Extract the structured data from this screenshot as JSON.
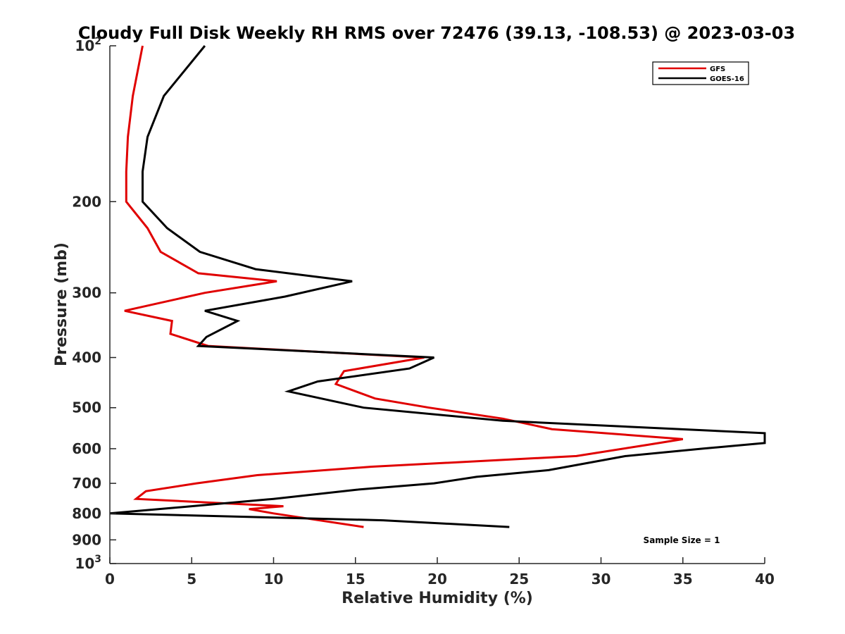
{
  "chart_data": {
    "type": "line",
    "title": "Cloudy Full Disk Weekly RH RMS over 72476 (39.13, -108.53) @ 2023-03-03",
    "xlabel": "Relative Humidity (%)",
    "ylabel": "Pressure (mb)",
    "xlim": [
      0,
      40
    ],
    "ylim": [
      100,
      1000
    ],
    "yscale": "log",
    "y_reversed": true,
    "grid": false,
    "legend_position": "top-right",
    "x_ticks": [
      "0",
      "5",
      "10",
      "15",
      "20",
      "25",
      "30",
      "35",
      "40"
    ],
    "y_ticks": [
      {
        "value": 100,
        "base": "10",
        "exp": "2"
      },
      {
        "value": 200,
        "label": "200"
      },
      {
        "value": 300,
        "label": "300"
      },
      {
        "value": 400,
        "label": "400"
      },
      {
        "value": 500,
        "label": "500"
      },
      {
        "value": 600,
        "label": "600"
      },
      {
        "value": 700,
        "label": "700"
      },
      {
        "value": 800,
        "label": "800"
      },
      {
        "value": 900,
        "label": "900"
      },
      {
        "value": 1000,
        "base": "10",
        "exp": "3"
      }
    ],
    "series": [
      {
        "name": "GFS",
        "color": "#e00000",
        "points": [
          {
            "x": 2.0,
            "y": 100
          },
          {
            "x": 1.4,
            "y": 125
          },
          {
            "x": 1.1,
            "y": 150
          },
          {
            "x": 1.0,
            "y": 175
          },
          {
            "x": 1.0,
            "y": 200
          },
          {
            "x": 2.3,
            "y": 225
          },
          {
            "x": 3.1,
            "y": 250
          },
          {
            "x": 5.4,
            "y": 275
          },
          {
            "x": 10.2,
            "y": 285
          },
          {
            "x": 5.8,
            "y": 300
          },
          {
            "x": 0.9,
            "y": 325
          },
          {
            "x": 3.8,
            "y": 340
          },
          {
            "x": 3.7,
            "y": 360
          },
          {
            "x": 6.0,
            "y": 380
          },
          {
            "x": 19.2,
            "y": 400
          },
          {
            "x": 14.3,
            "y": 425
          },
          {
            "x": 13.8,
            "y": 450
          },
          {
            "x": 16.2,
            "y": 480
          },
          {
            "x": 19.5,
            "y": 500
          },
          {
            "x": 24.0,
            "y": 525
          },
          {
            "x": 27.0,
            "y": 550
          },
          {
            "x": 35.0,
            "y": 575
          },
          {
            "x": 32.8,
            "y": 590
          },
          {
            "x": 28.5,
            "y": 620
          },
          {
            "x": 16.0,
            "y": 650
          },
          {
            "x": 9.0,
            "y": 675
          },
          {
            "x": 5.3,
            "y": 700
          },
          {
            "x": 2.2,
            "y": 725
          },
          {
            "x": 1.6,
            "y": 750
          },
          {
            "x": 10.6,
            "y": 775
          },
          {
            "x": 8.5,
            "y": 785
          },
          {
            "x": 10.0,
            "y": 800
          },
          {
            "x": 15.5,
            "y": 850
          }
        ]
      },
      {
        "name": "GOES-16",
        "color": "#000000",
        "points": [
          {
            "x": 5.8,
            "y": 100
          },
          {
            "x": 3.3,
            "y": 125
          },
          {
            "x": 2.3,
            "y": 150
          },
          {
            "x": 2.0,
            "y": 175
          },
          {
            "x": 2.0,
            "y": 200
          },
          {
            "x": 3.5,
            "y": 225
          },
          {
            "x": 5.5,
            "y": 250
          },
          {
            "x": 8.9,
            "y": 270
          },
          {
            "x": 14.8,
            "y": 285
          },
          {
            "x": 10.7,
            "y": 305
          },
          {
            "x": 5.8,
            "y": 325
          },
          {
            "x": 7.8,
            "y": 340
          },
          {
            "x": 5.9,
            "y": 365
          },
          {
            "x": 5.4,
            "y": 380
          },
          {
            "x": 19.8,
            "y": 400
          },
          {
            "x": 18.3,
            "y": 420
          },
          {
            "x": 12.7,
            "y": 445
          },
          {
            "x": 10.9,
            "y": 465
          },
          {
            "x": 15.5,
            "y": 500
          },
          {
            "x": 24.0,
            "y": 530
          },
          {
            "x": 40.0,
            "y": 560
          },
          {
            "x": 40.0,
            "y": 585
          },
          {
            "x": 36.2,
            "y": 600
          },
          {
            "x": 31.5,
            "y": 620
          },
          {
            "x": 26.8,
            "y": 660
          },
          {
            "x": 22.4,
            "y": 680
          },
          {
            "x": 19.8,
            "y": 700
          },
          {
            "x": 15.1,
            "y": 720
          },
          {
            "x": 10.0,
            "y": 750
          },
          {
            "x": 5.0,
            "y": 775
          },
          {
            "x": 0.0,
            "y": 800
          },
          {
            "x": 16.7,
            "y": 825
          },
          {
            "x": 24.4,
            "y": 850
          }
        ]
      }
    ],
    "annotation": "Sample Size = 1"
  }
}
